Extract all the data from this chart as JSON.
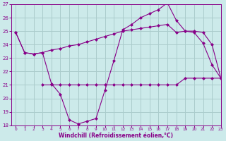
{
  "background_color": "#cceaea",
  "grid_color": "#aacccc",
  "line_color": "#880088",
  "xlabel": "Windchill (Refroidissement éolien,°C)",
  "xlabel_color": "#880088",
  "tick_color": "#880088",
  "ylim": [
    18,
    27
  ],
  "xlim": [
    -0.5,
    23
  ],
  "yticks": [
    18,
    19,
    20,
    21,
    22,
    23,
    24,
    25,
    26,
    27
  ],
  "xticks": [
    0,
    1,
    2,
    3,
    4,
    5,
    6,
    7,
    8,
    9,
    10,
    11,
    12,
    13,
    14,
    15,
    16,
    17,
    18,
    19,
    20,
    21,
    22,
    23
  ],
  "line1_x": [
    0,
    1,
    2,
    3,
    4,
    5,
    6,
    7,
    8,
    9,
    10,
    11,
    12,
    13,
    14,
    15,
    16,
    17,
    18,
    19,
    20,
    21,
    22,
    23
  ],
  "line1_y": [
    24.9,
    23.4,
    23.3,
    23.4,
    23.6,
    23.7,
    23.9,
    24.0,
    24.2,
    24.4,
    24.6,
    24.8,
    25.0,
    25.1,
    25.2,
    25.3,
    25.4,
    25.5,
    24.9,
    25.0,
    25.0,
    24.9,
    24.0,
    21.5
  ],
  "line2_x": [
    0,
    1,
    2,
    3,
    4,
    5,
    6,
    7,
    8,
    9,
    10,
    11,
    12,
    13,
    14,
    15,
    16,
    17,
    18,
    19,
    20,
    21,
    22,
    23
  ],
  "line2_y": [
    24.9,
    23.4,
    23.3,
    23.4,
    21.1,
    20.3,
    18.4,
    18.1,
    18.3,
    18.5,
    20.6,
    22.8,
    25.1,
    25.5,
    26.0,
    26.3,
    26.6,
    27.1,
    25.8,
    25.0,
    24.9,
    24.1,
    22.5,
    21.5
  ],
  "line3_x": [
    3,
    4,
    5,
    6,
    7,
    8,
    9,
    10,
    11,
    12,
    13,
    14,
    15,
    16,
    17,
    18,
    19,
    20,
    21,
    22,
    23
  ],
  "line3_y": [
    21.0,
    21.0,
    21.0,
    21.0,
    21.0,
    21.0,
    21.0,
    21.0,
    21.0,
    21.0,
    21.0,
    21.0,
    21.0,
    21.0,
    21.0,
    21.0,
    21.5,
    21.5,
    21.5,
    21.5,
    21.5
  ]
}
